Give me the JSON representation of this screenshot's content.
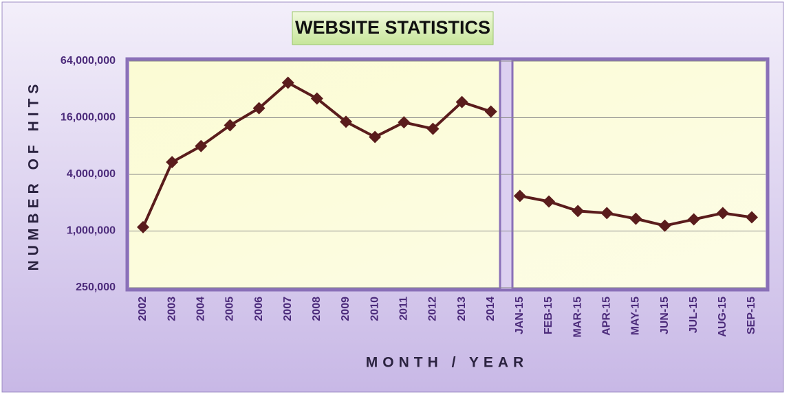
{
  "chart_data": {
    "type": "line",
    "title": "WEBSITE STATISTICS",
    "x_label": "MONTH / YEAR",
    "y_label": "NUMBER OF HITS",
    "categories": [
      "2002",
      "2003",
      "2004",
      "2005",
      "2006",
      "2007",
      "2008",
      "2009",
      "2010",
      "2011",
      "2012",
      "2013",
      "2014",
      "JAN-15",
      "FEB-15",
      "MAR-15",
      "APR-15",
      "MAY-15",
      "JUN-15",
      "JUL-15",
      "AUG-15",
      "SEP-15"
    ],
    "series": [
      {
        "color": "#5a1c1c",
        "values": [
          1100000,
          5400000,
          8000000,
          13300000,
          20200000,
          37700000,
          25600000,
          14500000,
          10000000,
          14300000,
          12200000,
          23500000,
          18600000,
          2360000,
          2060000,
          1630000,
          1550000,
          1350000,
          1140000,
          1330000,
          1550000,
          1400000
        ]
      }
    ],
    "line_breaks": [
      13
    ],
    "log_scale": true,
    "grid": true,
    "ylim": [
      250000,
      64000000
    ],
    "yticks": [
      {
        "value": 250000,
        "label": "250,000"
      },
      {
        "value": 1000000,
        "label": "1,000,000"
      },
      {
        "value": 4000000,
        "label": "4,000,000"
      },
      {
        "value": 16000000,
        "label": "16,000,000"
      },
      {
        "value": 64000000,
        "label": "64,000,000"
      }
    ]
  }
}
